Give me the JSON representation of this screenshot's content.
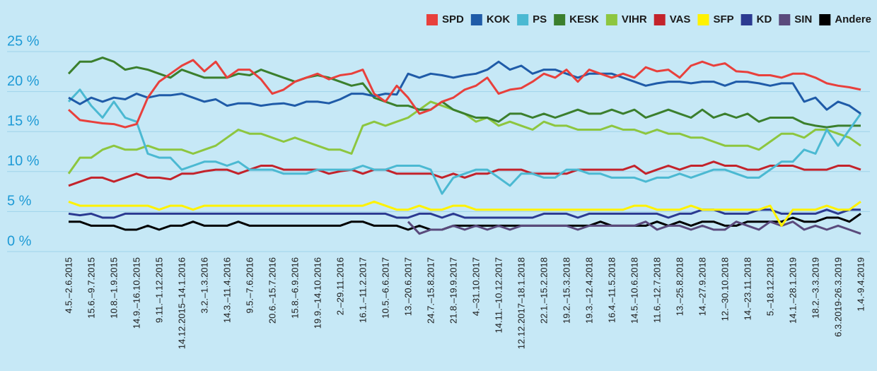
{
  "chart_data": {
    "type": "line",
    "legend": "top-right",
    "grid": true,
    "categories": [
      "4.5.–2.6.2015",
      null,
      "15.6.–9.7.2015",
      null,
      "10.8.–1.9.2015",
      null,
      "14.9.–16.10.2015",
      null,
      "9.11.–1.12.2015",
      null,
      "14.12.2015–14.1.2016",
      null,
      "3.2.–1.3.2016",
      null,
      "14.3.–11.4.2016",
      null,
      "9.5.–7.6.2016",
      null,
      "20.6.–15.7.2016",
      null,
      "15.8.–6.9.2016",
      null,
      "19.9.–14.10.2016",
      null,
      "2.–29.11.2016",
      null,
      "16.1.–11.2.2017",
      null,
      "10.5.–6.6.2017",
      null,
      "13.–20.6.2017",
      null,
      "24.7.–15.8.2017",
      null,
      "21.8.–19.9.2017",
      null,
      "4.–31.10.2017",
      null,
      "14.11.–10.12.2017",
      null,
      "12.12.2017–18.1.2018",
      null,
      "22.1.–15.2.2018",
      null,
      "19.2.–15.3.2018",
      null,
      "19.3.–12.4.2018",
      null,
      "16.4.–11.5.2018",
      null,
      "14.5.–10.6.2018",
      null,
      "11.6.–12.7.2018",
      null,
      "13.–25.8.2018",
      null,
      "14.–27.9.2018",
      null,
      "12.–30.10.2018",
      null,
      "14.–23.11.2018",
      null,
      "5.–18.12.2018",
      null,
      "14.1.–28.1.2019",
      null,
      "18.2.–3.3.2019",
      null,
      "6.3.2019-26.3.2019",
      null,
      "1.4.-9.4.2019"
    ],
    "ylim": [
      0,
      25
    ],
    "yticks": [
      {
        "value": 0,
        "label": "0 %"
      },
      {
        "value": 5,
        "label": "5 %"
      },
      {
        "value": 10,
        "label": "10 %"
      },
      {
        "value": 15,
        "label": "15 %"
      },
      {
        "value": 20,
        "label": "20 %"
      },
      {
        "value": 25,
        "label": "25 %"
      }
    ],
    "series": [
      {
        "name": "SPD",
        "color": "#e8403c",
        "values": [
          16.5,
          15.2,
          15,
          14.8,
          14.7,
          14.3,
          14.7,
          18,
          20,
          21,
          22,
          22.7,
          21.3,
          22.5,
          20.5,
          21.5,
          21.5,
          20.3,
          18.5,
          19,
          20,
          20.5,
          21,
          20.3,
          20.8,
          21,
          21.5,
          18.5,
          17.5,
          19.5,
          18,
          16,
          16.5,
          17.5,
          18,
          19,
          19.5,
          20.5,
          18.5,
          19,
          19.2,
          20,
          21,
          20.5,
          21.5,
          20,
          21.5,
          21,
          20.5,
          21,
          20.5,
          21.8,
          21.3,
          21.5,
          20.5,
          22,
          22.5,
          22,
          22.3,
          21.3,
          21.2,
          20.8,
          20.8,
          20.5,
          21,
          21,
          20.5,
          19.8,
          19.5,
          19.3,
          19
        ]
      },
      {
        "name": "KOK",
        "color": "#1f5ba8",
        "values": [
          18,
          17.2,
          18,
          17.5,
          18,
          17.8,
          18.5,
          18,
          18.3,
          18.3,
          18.5,
          18,
          17.5,
          17.8,
          17,
          17.3,
          17.3,
          17,
          17.2,
          17.3,
          17,
          17.5,
          17.5,
          17.3,
          17.8,
          18.5,
          18.5,
          18.2,
          18.5,
          18.4,
          21,
          20.5,
          21,
          20.8,
          20.5,
          20.8,
          21,
          21.5,
          22.5,
          21.5,
          22,
          21,
          21.5,
          21.5,
          21,
          20.5,
          21,
          21,
          21,
          20.5,
          20,
          19.5,
          19.8,
          20,
          20,
          19.8,
          20,
          20,
          19.5,
          20,
          20,
          19.8,
          19.5,
          19.8,
          19.8,
          17.5,
          18,
          16.5,
          17.5,
          17,
          16
        ]
      },
      {
        "name": "PS",
        "color": "#4bb9d2",
        "values": [
          17.5,
          19,
          17,
          15.5,
          17.5,
          15.5,
          15,
          11,
          10.5,
          10.5,
          9,
          9.5,
          10,
          10,
          9.5,
          10,
          9,
          9,
          9,
          8.5,
          8.5,
          8.5,
          9,
          9,
          9,
          9,
          9.5,
          9,
          9,
          9.5,
          9.5,
          9.5,
          9,
          6,
          8,
          8.5,
          9,
          9,
          8,
          7,
          8.5,
          8.5,
          8,
          8,
          9,
          9,
          8.5,
          8.5,
          8,
          8,
          8,
          7.5,
          8,
          8,
          8.5,
          8,
          8.5,
          9,
          9,
          8.5,
          8,
          8,
          9,
          10,
          10,
          11.5,
          11,
          14,
          12,
          14,
          16
        ]
      },
      {
        "name": "KESK",
        "color": "#3b7f2d",
        "values": [
          21,
          22.5,
          22.5,
          23,
          22.5,
          21.5,
          21.8,
          21.5,
          21,
          20.5,
          21.5,
          21,
          20.5,
          20.5,
          20.5,
          21,
          20.8,
          21.5,
          21,
          20.5,
          20,
          20.5,
          20.8,
          20.5,
          20,
          19.5,
          19.8,
          18,
          17.5,
          17,
          17,
          16.5,
          16.5,
          17.5,
          16.5,
          16,
          15.5,
          15.5,
          15,
          16,
          16,
          15.5,
          16,
          15.5,
          16,
          16.5,
          16,
          16,
          16.5,
          16,
          16.5,
          15.5,
          16,
          16.5,
          16,
          15.5,
          16.5,
          15.5,
          16,
          15.5,
          16,
          15,
          15.5,
          15.5,
          15.5,
          14.8,
          14.5,
          14.3,
          14.5,
          14.5,
          14.5
        ]
      },
      {
        "name": "VIHR",
        "color": "#8dc63f",
        "values": [
          8.5,
          10.5,
          10.5,
          11.5,
          12,
          11.5,
          11.5,
          12,
          11.5,
          11.5,
          11.5,
          11,
          11.5,
          12,
          13,
          14,
          13.5,
          13.5,
          13,
          12.5,
          13,
          12.5,
          12,
          11.5,
          11.5,
          11,
          14.5,
          15,
          14.5,
          15,
          15.5,
          16.5,
          17.5,
          17,
          16.5,
          16,
          15,
          15.5,
          14.5,
          15,
          14.5,
          14,
          15,
          14.5,
          14.5,
          14,
          14,
          14,
          14.5,
          14,
          14,
          13.5,
          14,
          13.5,
          13.5,
          13,
          13,
          12.5,
          12,
          12,
          12,
          11.5,
          12.5,
          13.5,
          13.5,
          13,
          14,
          14,
          13.5,
          13,
          12
        ]
      },
      {
        "name": "VAS",
        "color": "#c3232b",
        "values": [
          7,
          7.5,
          8,
          8,
          7.5,
          8,
          8.5,
          8,
          8,
          7.8,
          8.5,
          8.5,
          8.8,
          9,
          9,
          8.5,
          9,
          9.5,
          9.5,
          9,
          9,
          9,
          9,
          8.5,
          8.8,
          9,
          8.5,
          9,
          9,
          8.5,
          8.5,
          8.5,
          8.5,
          8,
          8.5,
          8,
          8.5,
          8.5,
          9,
          9,
          9,
          8.5,
          8.5,
          8.5,
          8.5,
          9,
          9,
          9,
          9,
          9,
          9.5,
          8.5,
          9,
          9.5,
          9,
          9.5,
          9.5,
          10,
          9.5,
          9.5,
          9,
          9,
          9.5,
          9.5,
          9.5,
          9,
          9,
          9,
          9.5,
          9.5,
          9
        ]
      },
      {
        "name": "SFP",
        "color": "#fff200",
        "values": [
          5,
          4.5,
          4.5,
          4.5,
          4.5,
          4.5,
          4.5,
          4.5,
          4,
          4.5,
          4.5,
          4,
          4.5,
          4.5,
          4.5,
          4.5,
          4.5,
          4.5,
          4.5,
          4.5,
          4.5,
          4.5,
          4.5,
          4.5,
          4.5,
          4.5,
          4.5,
          5,
          4.5,
          4,
          4,
          4.5,
          4,
          4,
          4.5,
          4.5,
          4,
          4,
          4,
          4,
          4,
          4,
          4,
          4,
          4,
          4,
          4,
          4,
          4,
          4,
          4.5,
          4.5,
          4,
          4,
          4,
          4.5,
          4,
          4,
          4,
          4,
          4,
          4,
          4.5,
          2,
          4,
          4,
          4,
          4.5,
          4,
          4,
          5
        ]
      },
      {
        "name": "KD",
        "color": "#2b3a91",
        "values": [
          3.5,
          3.3,
          3.5,
          3,
          3,
          3.5,
          3.5,
          3.5,
          3.5,
          3.5,
          3.5,
          3.5,
          3.5,
          3.5,
          3.5,
          3.5,
          3.5,
          3.5,
          3.5,
          3.5,
          3.5,
          3.5,
          3.5,
          3.5,
          3.5,
          3.5,
          3.5,
          3.5,
          3.5,
          3,
          3,
          3.5,
          3.5,
          3,
          3.5,
          3,
          3,
          3,
          3,
          3,
          3,
          3,
          3.5,
          3.5,
          3.5,
          3,
          3.5,
          3.5,
          3.5,
          3.5,
          3.5,
          3.5,
          3.5,
          3,
          3.5,
          3.5,
          4,
          4,
          3.5,
          3.5,
          3.5,
          4,
          4,
          3.5,
          3.5,
          3.5,
          3.5,
          4,
          3.5,
          4,
          4
        ]
      },
      {
        "name": "SIN",
        "color": "#5a4a7c",
        "values": [
          null,
          null,
          null,
          null,
          null,
          null,
          null,
          null,
          null,
          null,
          null,
          null,
          null,
          null,
          null,
          null,
          null,
          null,
          null,
          null,
          null,
          null,
          null,
          null,
          null,
          null,
          null,
          null,
          null,
          null,
          2.5,
          1,
          1.5,
          1.5,
          2,
          1.5,
          2,
          1.5,
          2,
          1.5,
          2,
          2,
          2,
          2,
          2,
          1.5,
          2,
          2,
          2,
          2,
          2,
          2.5,
          1.5,
          2,
          2,
          1.5,
          2,
          1.5,
          1.5,
          2.5,
          2,
          1.5,
          2.5,
          2,
          2.5,
          1.5,
          2,
          1.5,
          2,
          1.5,
          1
        ]
      },
      {
        "name": "Andere",
        "color": "#000000",
        "values": [
          2.5,
          2.5,
          2,
          2,
          2,
          1.5,
          1.5,
          2,
          1.5,
          2,
          2,
          2.5,
          2,
          2,
          2,
          2.5,
          2,
          2,
          2,
          2,
          2,
          2,
          2,
          2,
          2,
          2.5,
          2.5,
          2,
          2,
          2,
          1.5,
          2,
          1.5,
          1.5,
          2,
          2,
          2,
          2,
          2,
          2,
          2,
          2,
          2,
          2,
          2,
          2,
          2,
          2.5,
          2,
          2,
          2,
          2,
          2.5,
          2,
          2.5,
          2,
          2.5,
          2.5,
          2,
          2,
          2.5,
          2.5,
          2.5,
          2.5,
          3,
          2.5,
          2.5,
          3,
          3,
          2.5,
          3.5
        ]
      }
    ]
  }
}
